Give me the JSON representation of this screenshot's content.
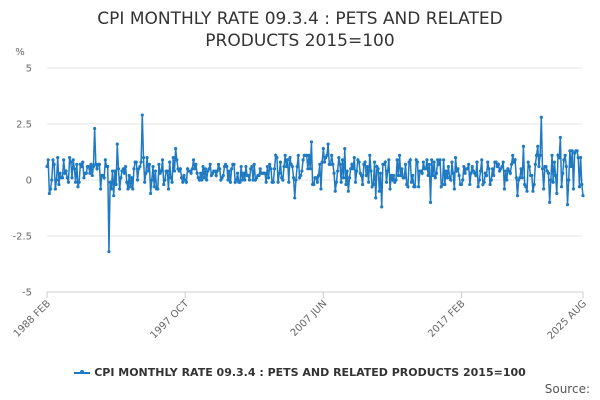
{
  "chart_data": {
    "type": "line",
    "title_lines": [
      "CPI MONTHLY RATE 09.3.4 : PETS AND RELATED",
      "PRODUCTS 2015=100"
    ],
    "ylabel": "%",
    "ylim": [
      -5,
      5
    ],
    "y_ticks": [
      "5",
      "2.5",
      "0",
      "-2.5",
      "-5"
    ],
    "y_tick_values": [
      5,
      2.5,
      0,
      -2.5,
      -5
    ],
    "x_start": "1988 FEB",
    "x_end": "2025 AUG",
    "x_ticks": [
      "1988 FEB",
      "1997 OCT",
      "2007 JUN",
      "2017 FEB",
      "2025 AUG"
    ],
    "x_tick_indices": [
      0,
      116,
      232,
      348,
      450
    ],
    "series": [
      {
        "name": "CPI MONTHLY RATE 09.3.4 : PETS AND RELATED PRODUCTS 2015=100",
        "color": "#1f7ac2",
        "description": "Monthly percentage change, approx. 451 observations from 1988 FEB to 2025 AUG; generated approximation reproducing visible extremes",
        "anchors": [
          {
            "index": 40,
            "value": 2.3
          },
          {
            "index": 52,
            "value": -3.2
          },
          {
            "index": 56,
            "value": -0.7
          },
          {
            "index": 59,
            "value": 1.6
          },
          {
            "index": 80,
            "value": 2.9
          },
          {
            "index": 87,
            "value": -0.6
          },
          {
            "index": 108,
            "value": 1.4
          },
          {
            "index": 208,
            "value": -0.8
          },
          {
            "index": 222,
            "value": 1.7
          },
          {
            "index": 236,
            "value": 1.6
          },
          {
            "index": 250,
            "value": 1.4
          },
          {
            "index": 281,
            "value": -1.2
          },
          {
            "index": 322,
            "value": -1.0
          },
          {
            "index": 400,
            "value": 1.5
          },
          {
            "index": 415,
            "value": 2.8
          },
          {
            "index": 422,
            "value": -1.0
          },
          {
            "index": 431,
            "value": 1.9
          },
          {
            "index": 437,
            "value": -1.1
          },
          {
            "index": 444,
            "value": 1.3
          },
          {
            "index": 450,
            "value": -0.7
          }
        ]
      }
    ]
  },
  "legend": {
    "label": "CPI MONTHLY RATE 09.3.4 : PETS AND RELATED PRODUCTS 2015=100"
  },
  "source": {
    "label": "Source:"
  }
}
